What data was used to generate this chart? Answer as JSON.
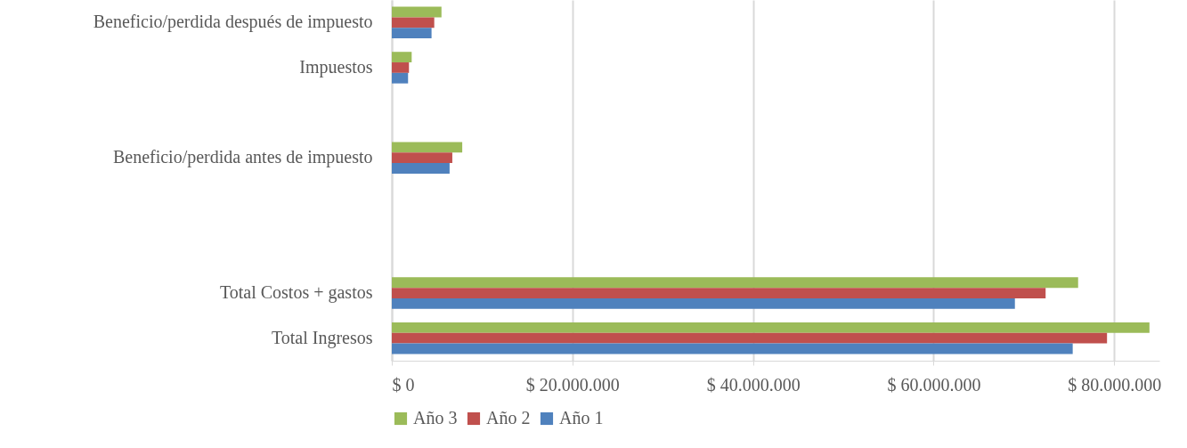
{
  "chart_data": {
    "type": "bar",
    "orientation": "horizontal",
    "categories": [
      "Beneficio/perdida después de impuesto",
      "Impuestos",
      null,
      "Beneficio/perdida antes de impuesto",
      null,
      null,
      "Total Costos + gastos",
      "Total Ingresos"
    ],
    "series": [
      {
        "name": "Año 3",
        "color": "#9bbb59",
        "values": [
          5500000,
          2200000,
          null,
          7800000,
          null,
          null,
          76000000,
          83900000
        ]
      },
      {
        "name": "Año 2",
        "color": "#c0504d",
        "values": [
          4700000,
          1900000,
          null,
          6700000,
          null,
          null,
          72400000,
          79200000
        ]
      },
      {
        "name": "Año 1",
        "color": "#4f81bd",
        "values": [
          4400000,
          1800000,
          null,
          6400000,
          null,
          null,
          69000000,
          75400000
        ]
      }
    ],
    "xlim": [
      0,
      85000000
    ],
    "xticks": [
      {
        "value": 0,
        "label": "$ 0"
      },
      {
        "value": 20000000,
        "label": "$ 20.000.000"
      },
      {
        "value": 40000000,
        "label": "$ 40.000.000"
      },
      {
        "value": 60000000,
        "label": "$ 60.000.000"
      },
      {
        "value": 80000000,
        "label": "$ 80.000.000"
      }
    ],
    "grid": "x",
    "legend": "bottom"
  }
}
